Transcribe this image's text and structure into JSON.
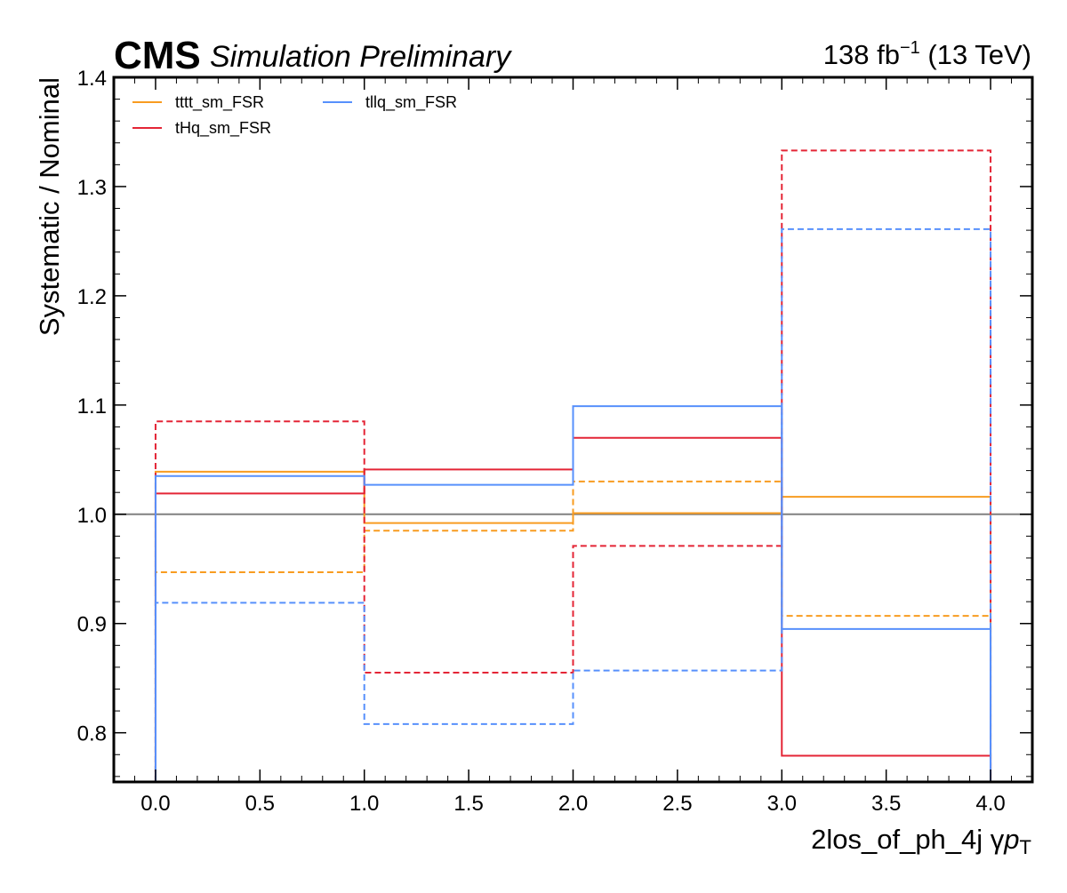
{
  "header": {
    "experiment": "CMS",
    "status": "Simulation Preliminary",
    "lumi_value": "138 fb",
    "lumi_exp": "−1",
    "energy": " (13 TeV)"
  },
  "chart_data": {
    "type": "step",
    "ylabel": "Systematic / Nominal",
    "xlabel_main": "2los_of_ph_4j",
    "xlabel_var_gamma": "γ",
    "xlabel_var_p": "p",
    "xlabel_var_sub": "T",
    "xlim": [
      -0.2,
      4.2
    ],
    "ylim": [
      0.755,
      1.4
    ],
    "xticks": [
      "0.0",
      "0.5",
      "1.0",
      "1.5",
      "2.0",
      "2.5",
      "3.0",
      "3.5",
      "4.0"
    ],
    "xtick_values": [
      0,
      0.5,
      1,
      1.5,
      2,
      2.5,
      3,
      3.5,
      4
    ],
    "yticks": [
      "0.8",
      "0.9",
      "1.0",
      "1.1",
      "1.2",
      "1.3",
      "1.4"
    ],
    "ytick_values": [
      0.8,
      0.9,
      1.0,
      1.1,
      1.2,
      1.3,
      1.4
    ],
    "bin_edges": [
      0,
      1,
      2,
      3,
      4
    ],
    "reference_line": 1.0,
    "legend_position": "top-left",
    "series": [
      {
        "name": "tttt_sm_FSR",
        "color": "#f89c20",
        "variation": "up",
        "style": "solid",
        "values": [
          1.039,
          0.992,
          1.001,
          1.016
        ]
      },
      {
        "name": "tttt_sm_FSR",
        "color": "#f89c20",
        "variation": "down",
        "style": "dashed",
        "values": [
          0.947,
          0.985,
          1.03,
          0.907
        ]
      },
      {
        "name": "tHq_sm_FSR",
        "color": "#e42536",
        "variation": "up",
        "style": "solid",
        "values": [
          1.019,
          1.041,
          1.07,
          0.779
        ]
      },
      {
        "name": "tHq_sm_FSR",
        "color": "#e42536",
        "variation": "down",
        "style": "dashed",
        "values": [
          1.085,
          0.855,
          0.971,
          1.333
        ]
      },
      {
        "name": "tllq_sm_FSR",
        "color": "#5790fc",
        "variation": "up",
        "style": "solid",
        "values": [
          1.035,
          1.027,
          1.099,
          0.895
        ]
      },
      {
        "name": "tllq_sm_FSR",
        "color": "#5790fc",
        "variation": "down",
        "style": "dashed",
        "values": [
          0.919,
          0.808,
          0.857,
          1.261
        ]
      }
    ],
    "legend": [
      {
        "label": "tttt_sm_FSR",
        "color": "#f89c20"
      },
      {
        "label": "tHq_sm_FSR",
        "color": "#e42536"
      },
      {
        "label": "tllq_sm_FSR",
        "color": "#5790fc"
      }
    ]
  }
}
